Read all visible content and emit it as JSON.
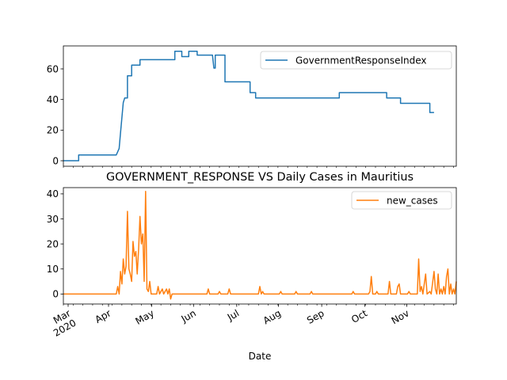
{
  "figure": {
    "title": "GOVERNMENT_RESPONSE VS Daily Cases in Mauritius",
    "xlabel": "Date"
  },
  "chart_data": [
    {
      "type": "line",
      "title": "",
      "xlabel": "",
      "ylabel": "",
      "xlim": [
        "2020-02-01",
        "2020-11-01"
      ],
      "ylim": [
        -3.6,
        75
      ],
      "yticks": [
        0,
        20,
        40,
        60
      ],
      "legend": "top-right",
      "series": [
        {
          "name": "GovernmentResponseIndex",
          "color": "#1f77b4",
          "points": [
            [
              "2020-02-01",
              0
            ],
            [
              "2020-02-12",
              0
            ],
            [
              "2020-02-12",
              3.8
            ],
            [
              "2020-03-10",
              3.8
            ],
            [
              "2020-03-12",
              8
            ],
            [
              "2020-03-13",
              18
            ],
            [
              "2020-03-15",
              38
            ],
            [
              "2020-03-16",
              41
            ],
            [
              "2020-03-18",
              41
            ],
            [
              "2020-03-18",
              55.5
            ],
            [
              "2020-03-21",
              55.5
            ],
            [
              "2020-03-21",
              62.5
            ],
            [
              "2020-03-27",
              62.5
            ],
            [
              "2020-03-27",
              66
            ],
            [
              "2020-04-21",
              66
            ],
            [
              "2020-04-21",
              71.5
            ],
            [
              "2020-04-26",
              71.5
            ],
            [
              "2020-04-26",
              68
            ],
            [
              "2020-05-01",
              68
            ],
            [
              "2020-05-01",
              71.5
            ],
            [
              "2020-05-07",
              71.5
            ],
            [
              "2020-05-07",
              69
            ],
            [
              "2020-05-18",
              69
            ],
            [
              "2020-05-19",
              60.5
            ],
            [
              "2020-05-20",
              60.5
            ],
            [
              "2020-05-20",
              69
            ],
            [
              "2020-05-27",
              69
            ],
            [
              "2020-05-27",
              51.5
            ],
            [
              "2020-06-14",
              51.5
            ],
            [
              "2020-06-14",
              44.5
            ],
            [
              "2020-06-18",
              44.5
            ],
            [
              "2020-06-18",
              41
            ],
            [
              "2020-08-17",
              41
            ],
            [
              "2020-08-17",
              44.5
            ],
            [
              "2020-09-20",
              44.5
            ],
            [
              "2020-09-20",
              41
            ],
            [
              "2020-09-30",
              41
            ],
            [
              "2020-09-30",
              37.5
            ],
            [
              "2020-10-21",
              37.5
            ],
            [
              "2020-10-21",
              31.5
            ],
            [
              "2020-10-24",
              31.5
            ]
          ]
        }
      ]
    },
    {
      "type": "line",
      "title": "GOVERNMENT_RESPONSE VS Daily Cases in Mauritius",
      "xlabel": "Date",
      "ylabel": "",
      "xlim": [
        "2020-02-01",
        "2020-11-01"
      ],
      "ylim": [
        -4,
        42.5
      ],
      "yticks": [
        0,
        10,
        20,
        30,
        40
      ],
      "xticks_major": [
        {
          "date": "2020-02-01",
          "label": "Mar\n2020"
        },
        {
          "date": "2020-03-01",
          "label": "Apr"
        },
        {
          "date": "2020-04-01",
          "label": "May"
        },
        {
          "date": "2020-05-01",
          "label": "Jun"
        },
        {
          "date": "2020-06-01",
          "label": "Jul"
        },
        {
          "date": "2020-07-01",
          "label": "Aug"
        },
        {
          "date": "2020-08-01",
          "label": "Sep"
        },
        {
          "date": "2020-09-01",
          "label": "Oct"
        },
        {
          "date": "2020-10-01",
          "label": "Nov"
        }
      ],
      "legend": "top-right",
      "series": [
        {
          "name": "new_cases",
          "color": "#ff7f0e",
          "points": [
            [
              "2020-02-01",
              0
            ],
            [
              "2020-03-10",
              0
            ],
            [
              "2020-03-11",
              3
            ],
            [
              "2020-03-12",
              0
            ],
            [
              "2020-03-13",
              9
            ],
            [
              "2020-03-14",
              4
            ],
            [
              "2020-03-15",
              14
            ],
            [
              "2020-03-16",
              8
            ],
            [
              "2020-03-17",
              11
            ],
            [
              "2020-03-18",
              33
            ],
            [
              "2020-03-19",
              10
            ],
            [
              "2020-03-20",
              8
            ],
            [
              "2020-03-21",
              5
            ],
            [
              "2020-03-22",
              21
            ],
            [
              "2020-03-23",
              15
            ],
            [
              "2020-03-24",
              17
            ],
            [
              "2020-03-25",
              8
            ],
            [
              "2020-03-26",
              18
            ],
            [
              "2020-03-27",
              31
            ],
            [
              "2020-03-28",
              20
            ],
            [
              "2020-03-29",
              24
            ],
            [
              "2020-03-30",
              5
            ],
            [
              "2020-03-31",
              41
            ],
            [
              "2020-04-01",
              2
            ],
            [
              "2020-04-02",
              1
            ],
            [
              "2020-04-03",
              5
            ],
            [
              "2020-04-04",
              0
            ],
            [
              "2020-04-08",
              0
            ],
            [
              "2020-04-09",
              3
            ],
            [
              "2020-04-10",
              0
            ],
            [
              "2020-04-12",
              2
            ],
            [
              "2020-04-13",
              0
            ],
            [
              "2020-04-15",
              2
            ],
            [
              "2020-04-16",
              0
            ],
            [
              "2020-04-17",
              2
            ],
            [
              "2020-04-18",
              -2
            ],
            [
              "2020-04-19",
              0
            ],
            [
              "2020-05-14",
              0
            ],
            [
              "2020-05-15",
              2
            ],
            [
              "2020-05-16",
              0
            ],
            [
              "2020-05-22",
              0
            ],
            [
              "2020-05-23",
              1
            ],
            [
              "2020-05-24",
              0
            ],
            [
              "2020-05-29",
              0
            ],
            [
              "2020-05-30",
              2
            ],
            [
              "2020-05-31",
              0
            ],
            [
              "2020-06-20",
              0
            ],
            [
              "2020-06-21",
              3
            ],
            [
              "2020-06-22",
              0
            ],
            [
              "2020-06-23",
              1
            ],
            [
              "2020-06-24",
              0
            ],
            [
              "2020-07-05",
              0
            ],
            [
              "2020-07-06",
              1
            ],
            [
              "2020-07-07",
              0
            ],
            [
              "2020-07-16",
              0
            ],
            [
              "2020-07-17",
              1
            ],
            [
              "2020-07-18",
              0
            ],
            [
              "2020-07-27",
              0
            ],
            [
              "2020-07-28",
              1
            ],
            [
              "2020-07-29",
              0
            ],
            [
              "2020-08-26",
              0
            ],
            [
              "2020-08-27",
              1
            ],
            [
              "2020-08-28",
              0
            ],
            [
              "2020-09-07",
              0
            ],
            [
              "2020-09-08",
              1
            ],
            [
              "2020-09-09",
              7
            ],
            [
              "2020-09-10",
              0
            ],
            [
              "2020-09-12",
              0
            ],
            [
              "2020-09-13",
              1
            ],
            [
              "2020-09-14",
              0
            ],
            [
              "2020-09-21",
              0
            ],
            [
              "2020-09-22",
              5
            ],
            [
              "2020-09-23",
              0
            ],
            [
              "2020-09-27",
              0
            ],
            [
              "2020-09-28",
              3
            ],
            [
              "2020-09-29",
              4
            ],
            [
              "2020-09-30",
              0
            ],
            [
              "2020-10-05",
              0
            ],
            [
              "2020-10-06",
              1
            ],
            [
              "2020-10-07",
              0
            ],
            [
              "2020-10-12",
              0
            ],
            [
              "2020-10-13",
              14
            ],
            [
              "2020-10-14",
              1
            ],
            [
              "2020-10-15",
              3
            ],
            [
              "2020-10-16",
              0
            ],
            [
              "2020-10-18",
              8
            ],
            [
              "2020-10-19",
              0
            ],
            [
              "2020-10-21",
              1
            ],
            [
              "2020-10-22",
              0
            ],
            [
              "2020-10-24",
              9
            ],
            [
              "2020-10-25",
              2
            ],
            [
              "2020-10-26",
              0
            ],
            [
              "2020-10-27",
              8
            ],
            [
              "2020-10-28",
              0
            ],
            [
              "2020-10-29",
              2
            ],
            [
              "2020-10-30",
              0
            ],
            [
              "2020-10-31",
              3
            ],
            [
              "2020-11-01",
              0
            ],
            [
              "2020-11-02",
              7
            ],
            [
              "2020-11-03",
              10
            ],
            [
              "2020-11-04",
              0
            ],
            [
              "2020-11-05",
              4
            ],
            [
              "2020-11-06",
              0
            ],
            [
              "2020-11-07",
              2
            ],
            [
              "2020-11-08",
              0
            ],
            [
              "2020-11-09",
              5
            ]
          ]
        }
      ]
    }
  ]
}
